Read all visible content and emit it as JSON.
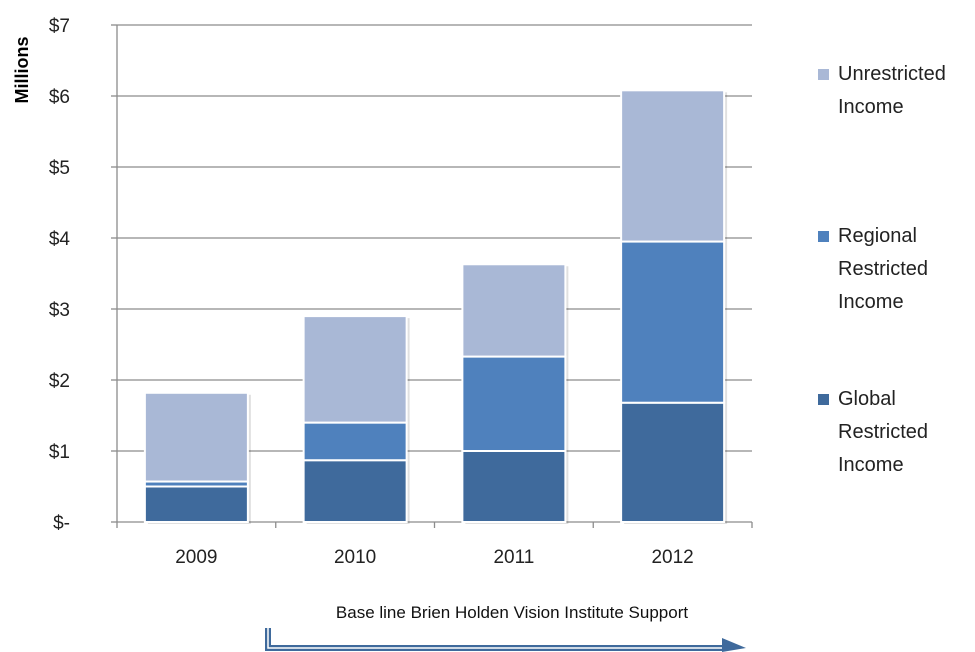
{
  "chart_data": {
    "type": "bar",
    "stacked": true,
    "categories": [
      "2009",
      "2010",
      "2011",
      "2012"
    ],
    "series": [
      {
        "name": "Global Restricted Income",
        "label_lines": [
          "Global",
          "Restricted",
          "Income"
        ],
        "color": "#3f6a9c",
        "values": [
          0.5,
          0.87,
          1.0,
          1.68
        ]
      },
      {
        "name": "Regional Restricted Income",
        "label_lines": [
          "Regional",
          "Restricted",
          "Income"
        ],
        "color": "#4f81bd",
        "values": [
          0.07,
          0.53,
          1.33,
          2.27
        ]
      },
      {
        "name": "Unrestricted Income",
        "label_lines": [
          "Unrestricted",
          "Income"
        ],
        "color": "#a9b8d6",
        "values": [
          1.25,
          1.5,
          1.3,
          2.13
        ]
      }
    ],
    "ylabel": "Millions",
    "ylim": [
      0,
      7
    ],
    "yticks": [
      {
        "value": 0,
        "label": "$-"
      },
      {
        "value": 1,
        "label": "$1"
      },
      {
        "value": 2,
        "label": "$2"
      },
      {
        "value": 3,
        "label": "$3"
      },
      {
        "value": 4,
        "label": "$4"
      },
      {
        "value": 5,
        "label": "$5"
      },
      {
        "value": 6,
        "label": "$6"
      },
      {
        "value": 7,
        "label": "$7"
      }
    ],
    "grid": true,
    "legend_position": "right",
    "annotation": {
      "text": "Base line Brien Holden Vision Institute Support",
      "spans_categories": [
        "2010",
        "2011",
        "2012"
      ],
      "arrow_color": "#3f6a9c"
    }
  }
}
